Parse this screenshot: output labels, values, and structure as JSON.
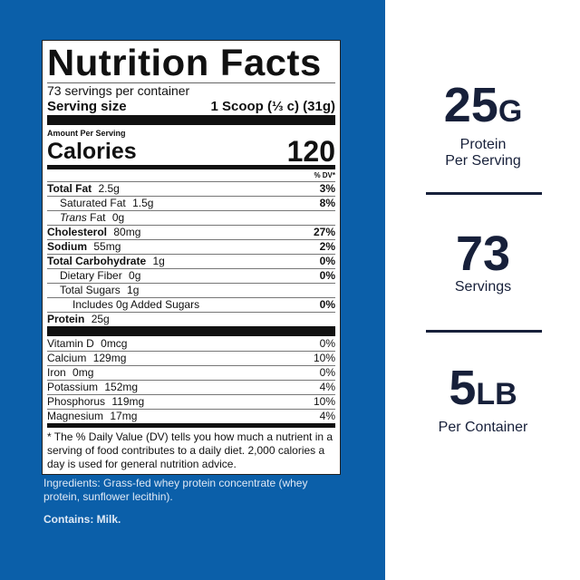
{
  "label": {
    "title": "Nutrition Facts",
    "servings": "73 servings per container",
    "serving_size_label": "Serving size",
    "serving_size_value": "1 Scoop (⅓ c) (31g)",
    "amount_per_serving": "Amount Per Serving",
    "calories_label": "Calories",
    "calories_value": "120",
    "dv_header": "% DV*",
    "nutrients": [
      {
        "name": "Total Fat",
        "amount": "2.5g",
        "dv": "3%",
        "bold": true,
        "indent": 0
      },
      {
        "name": "Saturated Fat",
        "amount": "1.5g",
        "dv": "8%",
        "bold": false,
        "indent": 1
      },
      {
        "name": "Trans",
        "name_suffix": " Fat",
        "amount": "0g",
        "dv": "",
        "bold": false,
        "indent": 1
      },
      {
        "name": "Cholesterol",
        "amount": "80mg",
        "dv": "27%",
        "bold": true,
        "indent": 0
      },
      {
        "name": "Sodium",
        "amount": "55mg",
        "dv": "2%",
        "bold": true,
        "indent": 0
      },
      {
        "name": "Total Carbohydrate",
        "amount": "1g",
        "dv": "0%",
        "bold": true,
        "indent": 0
      },
      {
        "name": "Dietary Fiber",
        "amount": "0g",
        "dv": "0%",
        "bold": false,
        "indent": 1
      },
      {
        "name": "Total Sugars",
        "amount": "1g",
        "dv": "",
        "bold": false,
        "indent": 1
      },
      {
        "name": "Includes 0g Added Sugars",
        "amount": "",
        "dv": "0%",
        "bold": false,
        "indent": 2
      },
      {
        "name": "Protein",
        "amount": "25g",
        "dv": "",
        "bold": true,
        "indent": 0
      }
    ],
    "vitamins": [
      {
        "name": "Vitamin D",
        "amount": "0mcg",
        "dv": "0%"
      },
      {
        "name": "Calcium",
        "amount": "129mg",
        "dv": "10%"
      },
      {
        "name": "Iron",
        "amount": "0mg",
        "dv": "0%"
      },
      {
        "name": "Potassium",
        "amount": "152mg",
        "dv": "4%"
      },
      {
        "name": "Phosphorus",
        "amount": "119mg",
        "dv": "10%"
      },
      {
        "name": "Magnesium",
        "amount": "17mg",
        "dv": "4%"
      }
    ],
    "footnote": "* The % Daily Value (DV) tells you how much a nutrient in a serving of food contributes to a daily diet. 2,000 calories a day is used for general nutrition advice."
  },
  "ingredients": "Ingredients: Grass-fed whey protein concentrate (whey protein, sunflower lecithin).",
  "contains": "Contains: Milk.",
  "stats": [
    {
      "value": "25",
      "unit": "G",
      "line1": "Protein",
      "line2": "Per Serving"
    },
    {
      "value": "73",
      "unit": "",
      "line1": "Servings",
      "line2": ""
    },
    {
      "value": "5",
      "unit": "LB",
      "line1": "Per Container",
      "line2": ""
    }
  ],
  "colors": {
    "background_blue": "#0b5fa9",
    "stat_text": "#17203a"
  }
}
